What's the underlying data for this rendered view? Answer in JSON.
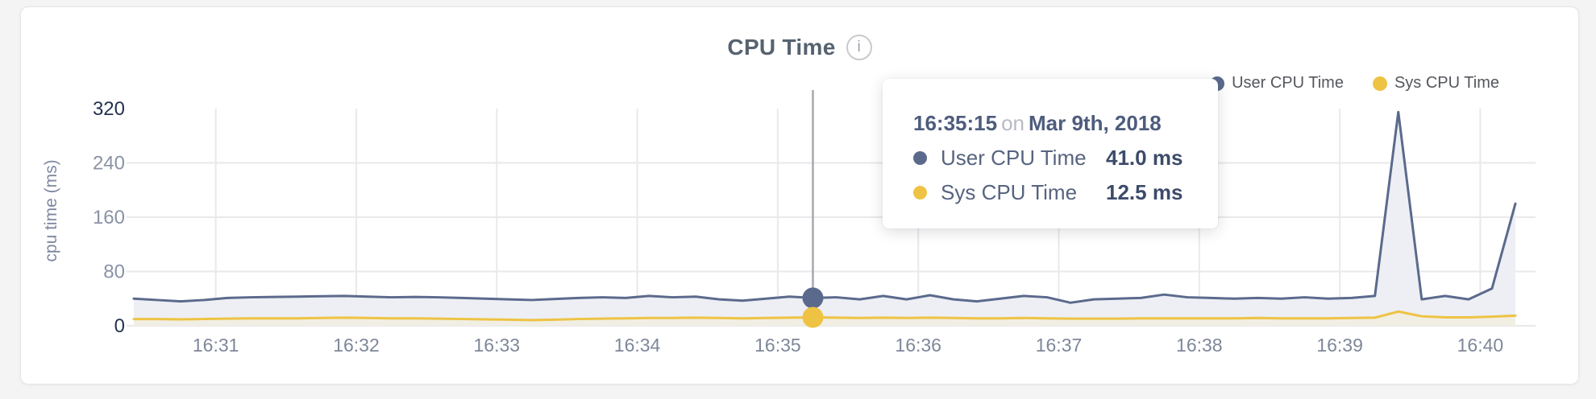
{
  "card": {
    "title": "CPU Time",
    "info_icon": "i"
  },
  "legend": [
    {
      "label": "User CPU Time",
      "color": "#5b6a8c"
    },
    {
      "label": "Sys CPU Time",
      "color": "#eec344"
    }
  ],
  "tooltip": {
    "time": "16:35:15",
    "connector": "on",
    "date": "Mar 9th, 2018",
    "rows": [
      {
        "label": "User CPU Time",
        "value": "41.0 ms",
        "color": "#5b6a8c"
      },
      {
        "label": "Sys CPU Time",
        "value": "12.5 ms",
        "color": "#eec344"
      }
    ]
  },
  "palette": {
    "grid": "#e9e9ec",
    "tick_dark": "#24324f",
    "tick_light": "#8a93a6",
    "xtick": "#7e8799",
    "hover_line": "#a5a8ad",
    "axis_label": "#7f88a0"
  },
  "chart_data": {
    "type": "area",
    "title": "CPU Time",
    "date": "Mar 9th, 2018",
    "ylabel": "cpu time (ms)",
    "xlabel": "",
    "ylim": [
      0,
      320
    ],
    "yticks": [
      0,
      80,
      160,
      240,
      320
    ],
    "xticks": [
      "16:31",
      "16:32",
      "16:33",
      "16:34",
      "16:35",
      "16:36",
      "16:37",
      "16:38",
      "16:39",
      "16:40"
    ],
    "grid": true,
    "legend_position": "top-right",
    "hover_index": 29,
    "x": [
      "16:30:25",
      "16:30:35",
      "16:30:45",
      "16:30:55",
      "16:31:05",
      "16:31:15",
      "16:31:25",
      "16:31:35",
      "16:31:45",
      "16:31:55",
      "16:32:05",
      "16:32:15",
      "16:32:25",
      "16:32:35",
      "16:32:45",
      "16:32:55",
      "16:33:05",
      "16:33:15",
      "16:33:25",
      "16:33:35",
      "16:33:45",
      "16:33:55",
      "16:34:05",
      "16:34:15",
      "16:34:25",
      "16:34:35",
      "16:34:45",
      "16:34:55",
      "16:35:05",
      "16:35:15",
      "16:35:25",
      "16:35:35",
      "16:35:45",
      "16:35:55",
      "16:36:05",
      "16:36:15",
      "16:36:25",
      "16:36:35",
      "16:36:45",
      "16:36:55",
      "16:37:05",
      "16:37:15",
      "16:37:25",
      "16:37:35",
      "16:37:45",
      "16:37:55",
      "16:38:05",
      "16:38:15",
      "16:38:25",
      "16:38:35",
      "16:38:45",
      "16:38:55",
      "16:39:05",
      "16:39:15",
      "16:39:25",
      "16:39:35",
      "16:39:45",
      "16:39:55",
      "16:40:05",
      "16:40:15"
    ],
    "series": [
      {
        "name": "User CPU Time",
        "color": "#5b6a8c",
        "fill": "#edeff4",
        "values": [
          40,
          38,
          36,
          38,
          41,
          42,
          42.5,
          43,
          43.5,
          44,
          43,
          42,
          42.5,
          42,
          41,
          40,
          39,
          38,
          39.5,
          41,
          42,
          41,
          44,
          42,
          43,
          39,
          37,
          40,
          43,
          41,
          42,
          39,
          44,
          39,
          45,
          39,
          36,
          40,
          44,
          42,
          34,
          39,
          40,
          41,
          46,
          42,
          41,
          40,
          41,
          40,
          42,
          40,
          41,
          44,
          315,
          39,
          44,
          39,
          55,
          180
        ]
      },
      {
        "name": "Sys CPU Time",
        "color": "#eec344",
        "fill": "#f1eee3",
        "values": [
          10,
          10,
          9.5,
          10,
          10.5,
          11,
          11,
          11,
          11.5,
          12,
          11.5,
          11,
          11,
          10.5,
          10,
          9.5,
          9,
          8.5,
          9,
          10,
          10.5,
          11,
          11.5,
          11.5,
          12,
          11.5,
          11,
          11.5,
          12,
          12.5,
          12,
          11.5,
          12,
          11.5,
          12,
          11.5,
          11,
          11,
          11.5,
          11,
          10.5,
          10.5,
          10.5,
          11,
          11,
          11,
          11,
          11,
          11.5,
          11,
          11,
          11,
          11.5,
          12,
          21,
          14,
          12.5,
          12.5,
          13.5,
          15
        ]
      }
    ]
  }
}
